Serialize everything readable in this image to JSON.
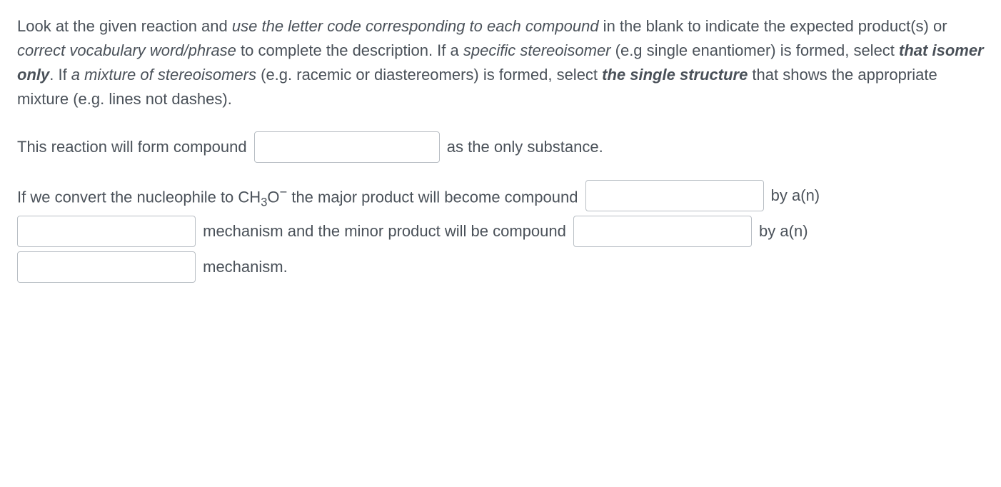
{
  "instructions": {
    "seg1": "Look at the given reaction and ",
    "seg2_italic": "use the letter code corresponding to each compound",
    "seg3": " in the blank to indicate the expected product(s) or ",
    "seg4_italic": "correct vocabulary word/phrase",
    "seg5": " to complete the description. If a ",
    "seg6_italic": "specific stereoisomer",
    "seg7": " (e.g single enantiomer) is formed, select ",
    "seg8_bolditalic": "that isomer only",
    "seg9": ". If ",
    "seg10_italic": "a mixture of stereoisomers",
    "seg11": " (e.g. racemic or diastereomers) is formed, select ",
    "seg12_bolditalic": "the single structure",
    "seg13": " that shows the appropriate mixture (e.g. lines not dashes)."
  },
  "line1": {
    "before": "This reaction will form compound ",
    "after": " as the only substance."
  },
  "line2": {
    "t1": "If we convert the nucleophile to CH",
    "sub3": "3",
    "t1b": "O",
    "super_minus": "−",
    "t1c": " the major product will become compound ",
    "t2": " by a(n) ",
    "t3": " mechanism and the minor product will be compound ",
    "t4": " by a(n) ",
    "t5": " mechanism."
  },
  "inputs": {
    "compound1": "",
    "compound2": "",
    "mech1": "",
    "compound3": "",
    "mech2": ""
  }
}
